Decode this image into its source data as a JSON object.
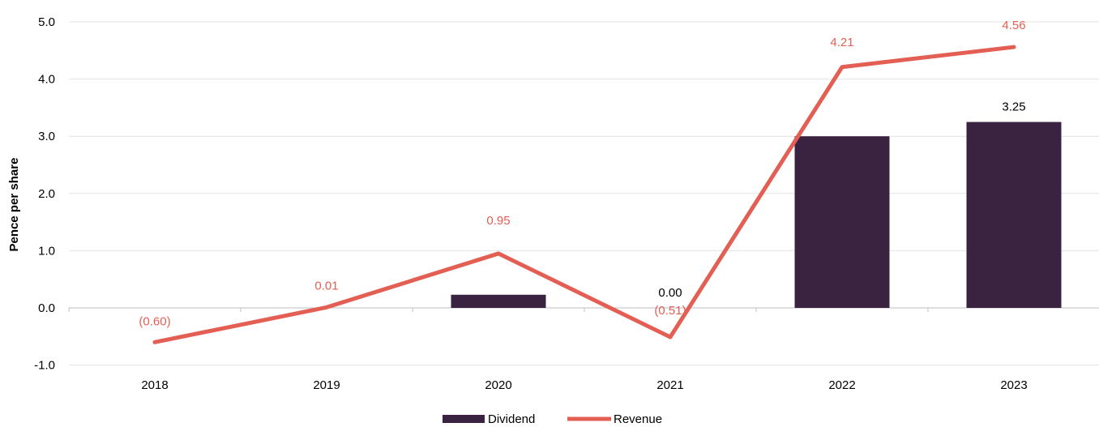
{
  "chart_data": {
    "type": "bar",
    "title": "",
    "xlabel": "",
    "ylabel": "Pence per share",
    "ylim": [
      -1.0,
      5.0
    ],
    "yticks": [
      5.0,
      4.0,
      3.0,
      2.0,
      1.0,
      0.0,
      -1.0
    ],
    "ytick_labels": [
      "5.0",
      "4.0",
      "3.0",
      "2.0",
      "1.0",
      "0.0",
      "-1.0"
    ],
    "grid": true,
    "legend_position": "bottom",
    "categories": [
      "2018",
      "2019",
      "2020",
      "2021",
      "2022",
      "2023"
    ],
    "series": [
      {
        "name": "Dividend",
        "type": "bar",
        "color": "#3a2340",
        "values": [
          0.0,
          0.0,
          0.23,
          0.0,
          3.0,
          3.25
        ],
        "labels": [
          "",
          "",
          "",
          "0.00",
          "",
          "3.25"
        ]
      },
      {
        "name": "Revenue",
        "type": "line",
        "color": "#e35f54",
        "values": [
          -0.6,
          0.01,
          0.95,
          -0.51,
          4.21,
          4.56
        ],
        "labels": [
          "(0.60)",
          "0.01",
          "0.95",
          "(0.51)",
          "4.21",
          "4.56"
        ]
      }
    ]
  }
}
